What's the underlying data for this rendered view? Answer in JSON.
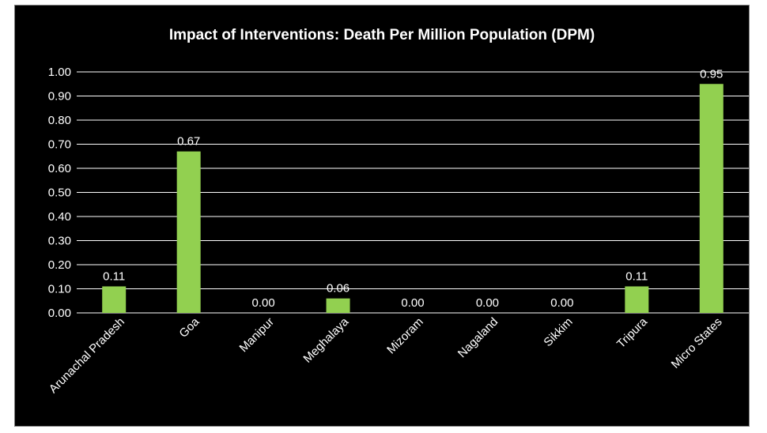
{
  "chart_data": {
    "type": "bar",
    "title": "Impact of Interventions: Death Per Million Population (DPM)",
    "categories": [
      "Arunachal Pradesh",
      "Goa",
      "Manipur",
      "Meghalaya",
      "Mizoram",
      "Nagaland",
      "Sikkim",
      "Tripura",
      "Micro States"
    ],
    "values": [
      0.11,
      0.67,
      0.0,
      0.06,
      0.0,
      0.0,
      0.0,
      0.11,
      0.95
    ],
    "data_labels": [
      "0.11",
      "0.67",
      "0.00",
      "0.06",
      "0.00",
      "0.00",
      "0.00",
      "0.11",
      "0.95"
    ],
    "yticks": [
      "0.00",
      "0.10",
      "0.20",
      "0.30",
      "0.40",
      "0.50",
      "0.60",
      "0.70",
      "0.80",
      "0.90",
      "1.00"
    ],
    "ylim": [
      0,
      1
    ],
    "xlabel": "",
    "ylabel": "",
    "grid": true,
    "legend": "none",
    "colors": {
      "bar": "#92d050",
      "background": "#000000",
      "grid": "#ffffff",
      "text": "#ffffff"
    }
  }
}
